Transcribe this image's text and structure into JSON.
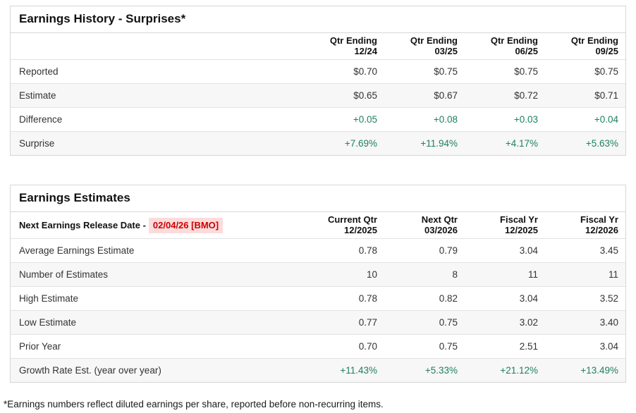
{
  "colors": {
    "green": "#1d8060",
    "red_text": "#cc0000",
    "red_highlight_bg": "#fbdcdc",
    "row_stripe": "#f7f7f7",
    "table_border": "#d6d6d6"
  },
  "history_table": {
    "title": "Earnings History - Surprises*",
    "columns": [
      {
        "top": "Qtr Ending",
        "bottom": "12/24"
      },
      {
        "top": "Qtr Ending",
        "bottom": "03/25"
      },
      {
        "top": "Qtr Ending",
        "bottom": "06/25"
      },
      {
        "top": "Qtr Ending",
        "bottom": "09/25"
      }
    ],
    "rows": [
      {
        "label": "Reported",
        "values": [
          "$0.70",
          "$0.75",
          "$0.75",
          "$0.75"
        ],
        "green": false
      },
      {
        "label": "Estimate",
        "values": [
          "$0.65",
          "$0.67",
          "$0.72",
          "$0.71"
        ],
        "green": false
      },
      {
        "label": "Difference",
        "values": [
          "+0.05",
          "+0.08",
          "+0.03",
          "+0.04"
        ],
        "green": true
      },
      {
        "label": "Surprise",
        "values": [
          "+7.69%",
          "+11.94%",
          "+4.17%",
          "+5.63%"
        ],
        "green": true
      }
    ]
  },
  "estimates_table": {
    "title": "Earnings Estimates",
    "release_label": "Next Earnings Release Date -",
    "release_date": "02/04/26 [BMO]",
    "columns": [
      {
        "top": "Current Qtr",
        "bottom": "12/2025"
      },
      {
        "top": "Next Qtr",
        "bottom": "03/2026"
      },
      {
        "top": "Fiscal Yr",
        "bottom": "12/2025"
      },
      {
        "top": "Fiscal Yr",
        "bottom": "12/2026"
      }
    ],
    "rows": [
      {
        "label": "Average Earnings Estimate",
        "values": [
          "0.78",
          "0.79",
          "3.04",
          "3.45"
        ],
        "green": false
      },
      {
        "label": "Number of Estimates",
        "values": [
          "10",
          "8",
          "11",
          "11"
        ],
        "green": false
      },
      {
        "label": "High Estimate",
        "values": [
          "0.78",
          "0.82",
          "3.04",
          "3.52"
        ],
        "green": false
      },
      {
        "label": "Low Estimate",
        "values": [
          "0.77",
          "0.75",
          "3.02",
          "3.40"
        ],
        "green": false
      },
      {
        "label": "Prior Year",
        "values": [
          "0.70",
          "0.75",
          "2.51",
          "3.04"
        ],
        "green": false
      },
      {
        "label": "Growth Rate Est. (year over year)",
        "values": [
          "+11.43%",
          "+5.33%",
          "+21.12%",
          "+13.49%"
        ],
        "green": true
      }
    ]
  },
  "footnote": "*Earnings numbers reflect diluted earnings per share, reported before non-recurring items."
}
